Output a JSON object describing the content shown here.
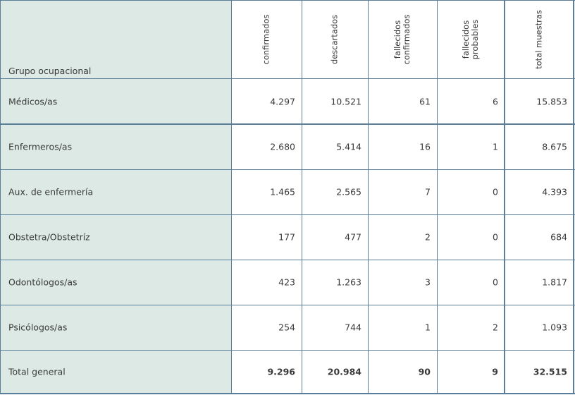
{
  "header": {
    "group_label": "Grupo ocupacional",
    "columns": [
      [
        "confirmados"
      ],
      [
        "descartados"
      ],
      [
        "fallecidos",
        "confirmados"
      ],
      [
        "fallecidos",
        "probables"
      ],
      [
        "total muestras"
      ]
    ]
  },
  "rows": [
    {
      "label": "Médicos/as",
      "values": [
        "4.297",
        "10.521",
        "61",
        "6",
        "15.853"
      ]
    },
    {
      "label": "Enfermeros/as",
      "values": [
        "2.680",
        "5.414",
        "16",
        "1",
        "8.675"
      ]
    },
    {
      "label": "Aux. de enfermería",
      "values": [
        "1.465",
        "2.565",
        "7",
        "0",
        "4.393"
      ]
    },
    {
      "label": "Obstetra/Obstetríz",
      "values": [
        "177",
        "477",
        "2",
        "0",
        "684"
      ]
    },
    {
      "label": "Odontólogos/as",
      "values": [
        "423",
        "1.263",
        "3",
        "0",
        "1.817"
      ]
    },
    {
      "label": "Psicólogos/as",
      "values": [
        "254",
        "744",
        "1",
        "2",
        "1.093"
      ]
    }
  ],
  "total": {
    "label": "Total general",
    "values": [
      "9.296",
      "20.984",
      "90",
      "9",
      "32.515"
    ]
  },
  "colors": {
    "label_bg": "#dce9e4",
    "border": "#5a7d9a",
    "text": "#3a3a3a"
  }
}
